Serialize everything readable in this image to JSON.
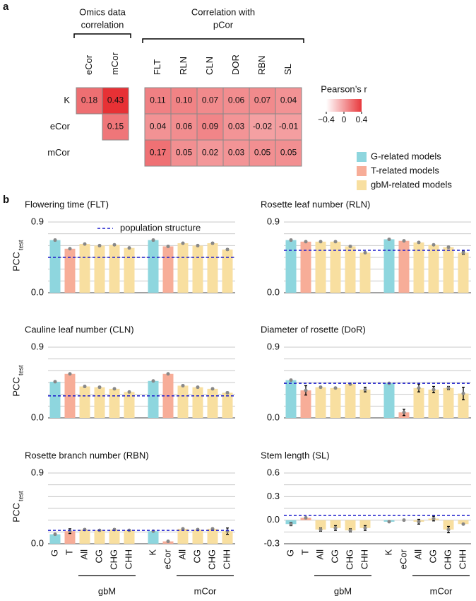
{
  "panel_labels": [
    "a",
    "b"
  ],
  "model_legend": [
    {
      "name": "G-related models",
      "color": "#8ed6de"
    },
    {
      "name": "T-related models",
      "color": "#f7ad98"
    },
    {
      "name": "gbM-related models",
      "color": "#f8dfa0"
    }
  ],
  "chart_data": [
    {
      "type": "heatmap",
      "rows": [
        "K",
        "eCor",
        "mCor"
      ],
      "column_groups": [
        {
          "title_lines": [
            "Omics data",
            "correlation"
          ],
          "columns": [
            "eCor",
            "mCor"
          ]
        },
        {
          "title_lines": [
            "Correlation with",
            "pCor"
          ],
          "columns": [
            "FLT",
            "RLN",
            "CLN",
            "DOR",
            "RBN",
            "SL"
          ]
        }
      ],
      "values": [
        [
          0.18,
          0.43,
          0.11,
          0.1,
          0.07,
          0.06,
          0.07,
          0.04
        ],
        [
          null,
          0.15,
          0.04,
          0.06,
          0.09,
          0.03,
          -0.02,
          -0.01
        ],
        [
          null,
          null,
          0.17,
          0.05,
          0.02,
          0.03,
          0.05,
          0.05
        ]
      ],
      "value_labels": [
        [
          "0.18",
          "0.43",
          "0.11",
          "0.10",
          "0.07",
          "0.06",
          "0.07",
          "0.04"
        ],
        [
          null,
          "0.15",
          "0.04",
          "0.06",
          "0.09",
          "0.03",
          "-0.02",
          "-0.01"
        ],
        [
          null,
          null,
          "0.17",
          "0.05",
          "0.02",
          "0.03",
          "0.05",
          "0.05"
        ]
      ],
      "colorbar": {
        "label": "Pearson’s r",
        "lim": [
          -0.4,
          0.4
        ],
        "colors": [
          "#ffffff",
          "#e8383c"
        ],
        "ticks": [
          {
            "value": -0.4,
            "label": "−0.4"
          },
          0,
          0.4
        ]
      }
    },
    {
      "type": "bar",
      "title": "Flowering time (FLT)",
      "y_label": "PCC",
      "y_label_sub": "test",
      "values": [
        0.67,
        0.56,
        0.62,
        0.6,
        0.61,
        0.57,
        0.67,
        0.59,
        0.63,
        0.6,
        0.63,
        0.55
      ],
      "errors": [
        0.01,
        0.01,
        0.01,
        0.01,
        0.01,
        0.01,
        0.01,
        0.01,
        0.01,
        0.01,
        0.01,
        0.01
      ],
      "colors": [
        "#8ed6de",
        "#f7ad98",
        "#f8dfa0",
        "#f8dfa0",
        "#f8dfa0",
        "#f8dfa0",
        "#8ed6de",
        "#f7ad98",
        "#f8dfa0",
        "#f8dfa0",
        "#f8dfa0",
        "#f8dfa0"
      ],
      "reference_line": 0.45,
      "reference_label": "population structure",
      "reference_color": "#1a1acc",
      "ylim": [
        0,
        0.9
      ],
      "yticks": [
        {
          "value": 0,
          "label": "0.0"
        },
        {
          "value": 0.9,
          "label": "0.9"
        }
      ],
      "gridlines": [
        0.15,
        0.3,
        0.45,
        0.6,
        0.75
      ]
    },
    {
      "type": "bar",
      "title": "Rosette leaf number (RLN)",
      "values": [
        0.67,
        0.65,
        0.65,
        0.65,
        0.59,
        0.51,
        0.68,
        0.66,
        0.64,
        0.61,
        0.58,
        0.51
      ],
      "errors": [
        0.01,
        0.01,
        0.01,
        0.01,
        0.01,
        0.01,
        0.01,
        0.01,
        0.01,
        0.01,
        0.01,
        0.02
      ],
      "colors": [
        "#8ed6de",
        "#f7ad98",
        "#f8dfa0",
        "#f8dfa0",
        "#f8dfa0",
        "#f8dfa0",
        "#8ed6de",
        "#f7ad98",
        "#f8dfa0",
        "#f8dfa0",
        "#f8dfa0",
        "#f8dfa0"
      ],
      "reference_line": 0.54,
      "reference_color": "#1a1acc",
      "ylim": [
        0,
        0.9
      ],
      "yticks": [
        {
          "value": 0,
          "label": "0.0"
        },
        {
          "value": 0.9,
          "label": "0.9"
        }
      ],
      "gridlines": [
        0.15,
        0.3,
        0.45,
        0.6,
        0.75
      ]
    },
    {
      "type": "bar",
      "title": "Cauline leaf number (CLN)",
      "y_label": "PCC",
      "y_label_sub": "test",
      "values": [
        0.46,
        0.56,
        0.4,
        0.39,
        0.37,
        0.33,
        0.47,
        0.56,
        0.41,
        0.39,
        0.37,
        0.32
      ],
      "errors": [
        0.01,
        0.01,
        0.01,
        0.01,
        0.01,
        0.01,
        0.01,
        0.01,
        0.01,
        0.01,
        0.01,
        0.01
      ],
      "colors": [
        "#8ed6de",
        "#f7ad98",
        "#f8dfa0",
        "#f8dfa0",
        "#f8dfa0",
        "#f8dfa0",
        "#8ed6de",
        "#f7ad98",
        "#f8dfa0",
        "#f8dfa0",
        "#f8dfa0",
        "#f8dfa0"
      ],
      "reference_line": 0.28,
      "reference_color": "#1a1acc",
      "ylim": [
        0,
        0.9
      ],
      "yticks": [
        {
          "value": 0,
          "label": "0.0"
        },
        {
          "value": 0.9,
          "label": "0.9"
        }
      ],
      "gridlines": [
        0.15,
        0.3,
        0.45,
        0.6,
        0.75
      ]
    },
    {
      "type": "bar",
      "title": "Diameter of rosette (DoR)",
      "values": [
        0.48,
        0.35,
        0.39,
        0.38,
        0.43,
        0.36,
        0.44,
        0.07,
        0.38,
        0.36,
        0.38,
        0.31
      ],
      "errors": [
        0.01,
        0.06,
        0.01,
        0.01,
        0.01,
        0.03,
        0.01,
        0.04,
        0.05,
        0.04,
        0.02,
        0.08
      ],
      "colors": [
        "#8ed6de",
        "#f7ad98",
        "#f8dfa0",
        "#f8dfa0",
        "#f8dfa0",
        "#f8dfa0",
        "#8ed6de",
        "#f7ad98",
        "#f8dfa0",
        "#f8dfa0",
        "#f8dfa0",
        "#f8dfa0"
      ],
      "reference_line": 0.44,
      "reference_color": "#1a1acc",
      "ylim": [
        0,
        0.9
      ],
      "yticks": [
        {
          "value": 0,
          "label": "0.0"
        },
        {
          "value": 0.9,
          "label": "0.9"
        }
      ],
      "gridlines": [
        0.15,
        0.3,
        0.45,
        0.6,
        0.75
      ]
    },
    {
      "type": "bar",
      "title": "Rosette branch number (RBN)",
      "y_label": "PCC",
      "y_label_sub": "test",
      "categories": [
        "G",
        "T",
        "All",
        "CG",
        "CHG",
        "CHH",
        "K",
        "eCor",
        "All",
        "CG",
        "CHG",
        "CHH"
      ],
      "groups": [
        "gbM",
        "mCor"
      ],
      "values": [
        0.12,
        0.16,
        0.18,
        0.17,
        0.18,
        0.17,
        0.16,
        0.03,
        0.19,
        0.18,
        0.19,
        0.16
      ],
      "errors": [
        0.01,
        0.03,
        0.01,
        0.01,
        0.01,
        0.01,
        0.01,
        0.01,
        0.01,
        0.01,
        0.01,
        0.04
      ],
      "colors": [
        "#8ed6de",
        "#f7ad98",
        "#f8dfa0",
        "#f8dfa0",
        "#f8dfa0",
        "#f8dfa0",
        "#8ed6de",
        "#f7ad98",
        "#f8dfa0",
        "#f8dfa0",
        "#f8dfa0",
        "#f8dfa0"
      ],
      "reference_line": 0.17,
      "reference_color": "#1a1acc",
      "ylim": [
        0,
        0.9
      ],
      "yticks": [
        {
          "value": 0,
          "label": "0.0"
        },
        {
          "value": 0.9,
          "label": "0.9"
        }
      ],
      "gridlines": [
        0.15,
        0.3,
        0.45,
        0.6,
        0.75
      ]
    },
    {
      "type": "bar",
      "title": "Stem length (SL)",
      "categories": [
        "G",
        "T",
        "All",
        "CG",
        "CHG",
        "CHH",
        "K",
        "eCor",
        "All",
        "CG",
        "CHG",
        "CHH"
      ],
      "groups": [
        "gbM",
        "mCor"
      ],
      "values": [
        -0.05,
        0.03,
        -0.12,
        -0.1,
        -0.13,
        -0.1,
        -0.02,
        0.0,
        -0.02,
        0.02,
        -0.12,
        -0.05
      ],
      "errors": [
        0.02,
        0.01,
        0.02,
        0.03,
        0.02,
        0.03,
        0.01,
        0.01,
        0.03,
        0.03,
        0.04,
        0.01
      ],
      "colors": [
        "#8ed6de",
        "#f7ad98",
        "#f8dfa0",
        "#f8dfa0",
        "#f8dfa0",
        "#f8dfa0",
        "#8ed6de",
        "#f7ad98",
        "#f8dfa0",
        "#f8dfa0",
        "#f8dfa0",
        "#f8dfa0"
      ],
      "reference_line": 0.06,
      "reference_color": "#1a1acc",
      "ylim": [
        -0.3,
        0.6
      ],
      "yticks": [
        -0.3,
        {
          "value": 0,
          "label": "0.0"
        },
        0.3,
        0.6
      ],
      "gridlines": [
        -0.15,
        0.15,
        0.45
      ]
    }
  ]
}
